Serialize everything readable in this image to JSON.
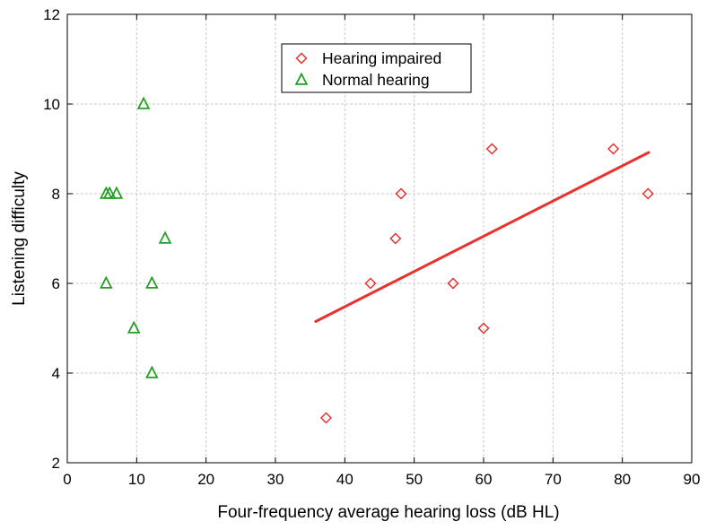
{
  "chart_data": {
    "type": "scatter",
    "xlabel": "Four-frequency average hearing loss (dB HL)",
    "ylabel": "Listening difficulty",
    "xlim": [
      0,
      90
    ],
    "ylim": [
      2,
      12
    ],
    "x_ticks": [
      0,
      10,
      20,
      30,
      40,
      50,
      60,
      70,
      80,
      90
    ],
    "y_ticks": [
      2,
      4,
      6,
      8,
      10,
      12
    ],
    "grid": true,
    "legend_position": "top-center",
    "series": [
      {
        "name": "Hearing impaired",
        "marker": "diamond",
        "color": "#e8322d",
        "points": [
          {
            "x": 37.3,
            "y": 3
          },
          {
            "x": 43.7,
            "y": 6
          },
          {
            "x": 47.3,
            "y": 7
          },
          {
            "x": 48.1,
            "y": 8
          },
          {
            "x": 55.6,
            "y": 6
          },
          {
            "x": 60.0,
            "y": 5
          },
          {
            "x": 61.2,
            "y": 9
          },
          {
            "x": 78.7,
            "y": 9
          },
          {
            "x": 83.7,
            "y": 8
          }
        ],
        "trend_line": {
          "x": [
            35.8,
            83.8
          ],
          "y": [
            5.15,
            8.92
          ]
        }
      },
      {
        "name": "Normal hearing",
        "marker": "triangle",
        "color": "#22a022",
        "points": [
          {
            "x": 5.6,
            "y": 8
          },
          {
            "x": 6.1,
            "y": 8
          },
          {
            "x": 7.1,
            "y": 8
          },
          {
            "x": 11.0,
            "y": 10
          },
          {
            "x": 5.6,
            "y": 6
          },
          {
            "x": 12.2,
            "y": 6
          },
          {
            "x": 9.6,
            "y": 5
          },
          {
            "x": 12.2,
            "y": 4
          },
          {
            "x": 14.1,
            "y": 7
          }
        ]
      }
    ]
  }
}
